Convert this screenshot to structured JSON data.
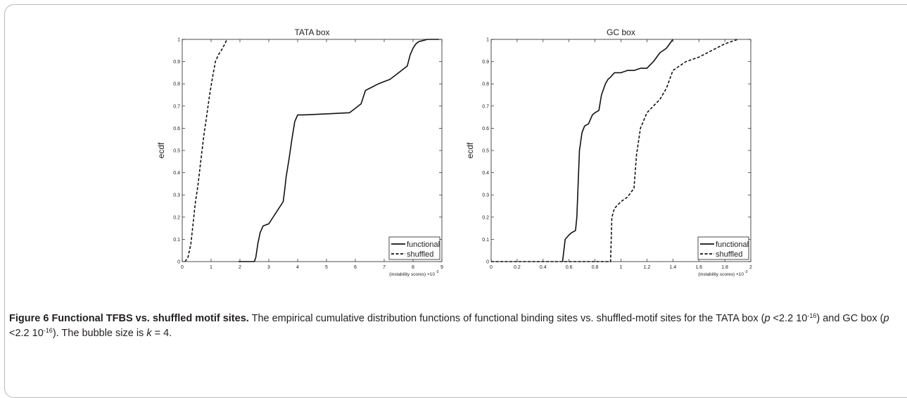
{
  "figure": {
    "caption": {
      "label": "Figure 6",
      "title": "Functional TFBS vs. shuffled motif sites",
      "sentence1_a": "The empirical cumulative distribution functions of functional binding sites vs. shuffled-motif sites for the TATA box (",
      "p_symbol": "p",
      "p_value_1": " <2.2 10",
      "exp_1": "-16",
      "mid": ") and GC box (",
      "p_value_2": " <2.2 10",
      "exp_2": "-16",
      "sentence1_end": "). The bubble size is ",
      "k_symbol": "k",
      "k_value": " = 4."
    }
  },
  "chart_data": [
    {
      "type": "line",
      "title": "TATA box",
      "ylabel": "ecdf",
      "xlabel": "(instability scores) ×10",
      "xlabel_exp": "-3",
      "xlim": [
        0,
        9
      ],
      "ylim": [
        0,
        1
      ],
      "xticks": [
        "0",
        "1",
        "2",
        "3",
        "4",
        "5",
        "6",
        "7",
        "8",
        "9"
      ],
      "yticks": [
        "0",
        "0.1",
        "0.2",
        "0.3",
        "0.4",
        "0.5",
        "0.6",
        "0.7",
        "0.8",
        "0.9",
        "1"
      ],
      "legend_position": "bottom-right",
      "series": [
        {
          "name": "functional",
          "style": "solid",
          "x": [
            1.95,
            2.5,
            2.55,
            2.62,
            2.7,
            2.8,
            3.0,
            3.1,
            3.3,
            3.4,
            3.5,
            3.55,
            3.6,
            3.7,
            3.8,
            3.9,
            4.0,
            4.2,
            5.0,
            5.8,
            6.0,
            6.2,
            6.35,
            6.5,
            6.8,
            7.0,
            7.2,
            7.4,
            7.6,
            7.8,
            7.9,
            8.0,
            8.1,
            8.2,
            8.5,
            8.9
          ],
          "y": [
            0.0,
            0.0,
            0.02,
            0.08,
            0.13,
            0.16,
            0.17,
            0.19,
            0.23,
            0.25,
            0.27,
            0.32,
            0.38,
            0.46,
            0.55,
            0.63,
            0.66,
            0.66,
            0.665,
            0.67,
            0.69,
            0.71,
            0.77,
            0.78,
            0.8,
            0.81,
            0.82,
            0.84,
            0.86,
            0.88,
            0.93,
            0.96,
            0.98,
            0.99,
            1.0,
            1.0
          ]
        },
        {
          "name": "shuffled",
          "style": "dashed",
          "x": [
            0.1,
            0.2,
            0.3,
            0.4,
            0.45,
            0.55,
            0.65,
            0.75,
            0.85,
            0.95,
            1.05,
            1.15,
            1.25,
            1.4,
            1.55
          ],
          "y": [
            0.0,
            0.02,
            0.08,
            0.2,
            0.26,
            0.35,
            0.46,
            0.57,
            0.66,
            0.75,
            0.83,
            0.9,
            0.93,
            0.96,
            1.0
          ]
        }
      ]
    },
    {
      "type": "line",
      "title": "GC box",
      "ylabel": "ecdf",
      "xlabel": "(instability scores) ×10",
      "xlabel_exp": "-3",
      "xlim": [
        0,
        2
      ],
      "ylim": [
        0,
        1
      ],
      "xticks": [
        "0",
        "0.2",
        "0.4",
        "0.6",
        "0.8",
        "1",
        "1.2",
        "1.4",
        "1.6",
        "1.8",
        "2"
      ],
      "yticks": [
        "0",
        "0.1",
        "0.2",
        "0.3",
        "0.4",
        "0.5",
        "0.6",
        "0.7",
        "0.8",
        "0.9",
        "1"
      ],
      "legend_position": "bottom-right",
      "series": [
        {
          "name": "functional",
          "style": "solid",
          "x": [
            0.55,
            0.57,
            0.6,
            0.62,
            0.65,
            0.66,
            0.68,
            0.7,
            0.72,
            0.75,
            0.78,
            0.8,
            0.83,
            0.85,
            0.88,
            0.9,
            0.92,
            0.95,
            1.0,
            1.05,
            1.1,
            1.15,
            1.2,
            1.25,
            1.3,
            1.35,
            1.4
          ],
          "y": [
            0.0,
            0.1,
            0.12,
            0.13,
            0.14,
            0.2,
            0.5,
            0.58,
            0.61,
            0.62,
            0.66,
            0.67,
            0.68,
            0.75,
            0.8,
            0.82,
            0.83,
            0.85,
            0.85,
            0.86,
            0.86,
            0.87,
            0.87,
            0.9,
            0.94,
            0.96,
            1.0
          ]
        },
        {
          "name": "shuffled",
          "style": "dashed",
          "x": [
            0.0,
            0.92,
            0.93,
            0.95,
            1.0,
            1.05,
            1.1,
            1.12,
            1.15,
            1.2,
            1.25,
            1.3,
            1.35,
            1.4,
            1.5,
            1.6,
            1.7,
            1.8,
            1.9
          ],
          "y": [
            0.0,
            0.0,
            0.2,
            0.24,
            0.27,
            0.29,
            0.33,
            0.48,
            0.6,
            0.67,
            0.7,
            0.73,
            0.78,
            0.86,
            0.9,
            0.92,
            0.95,
            0.98,
            1.0
          ]
        }
      ]
    }
  ]
}
